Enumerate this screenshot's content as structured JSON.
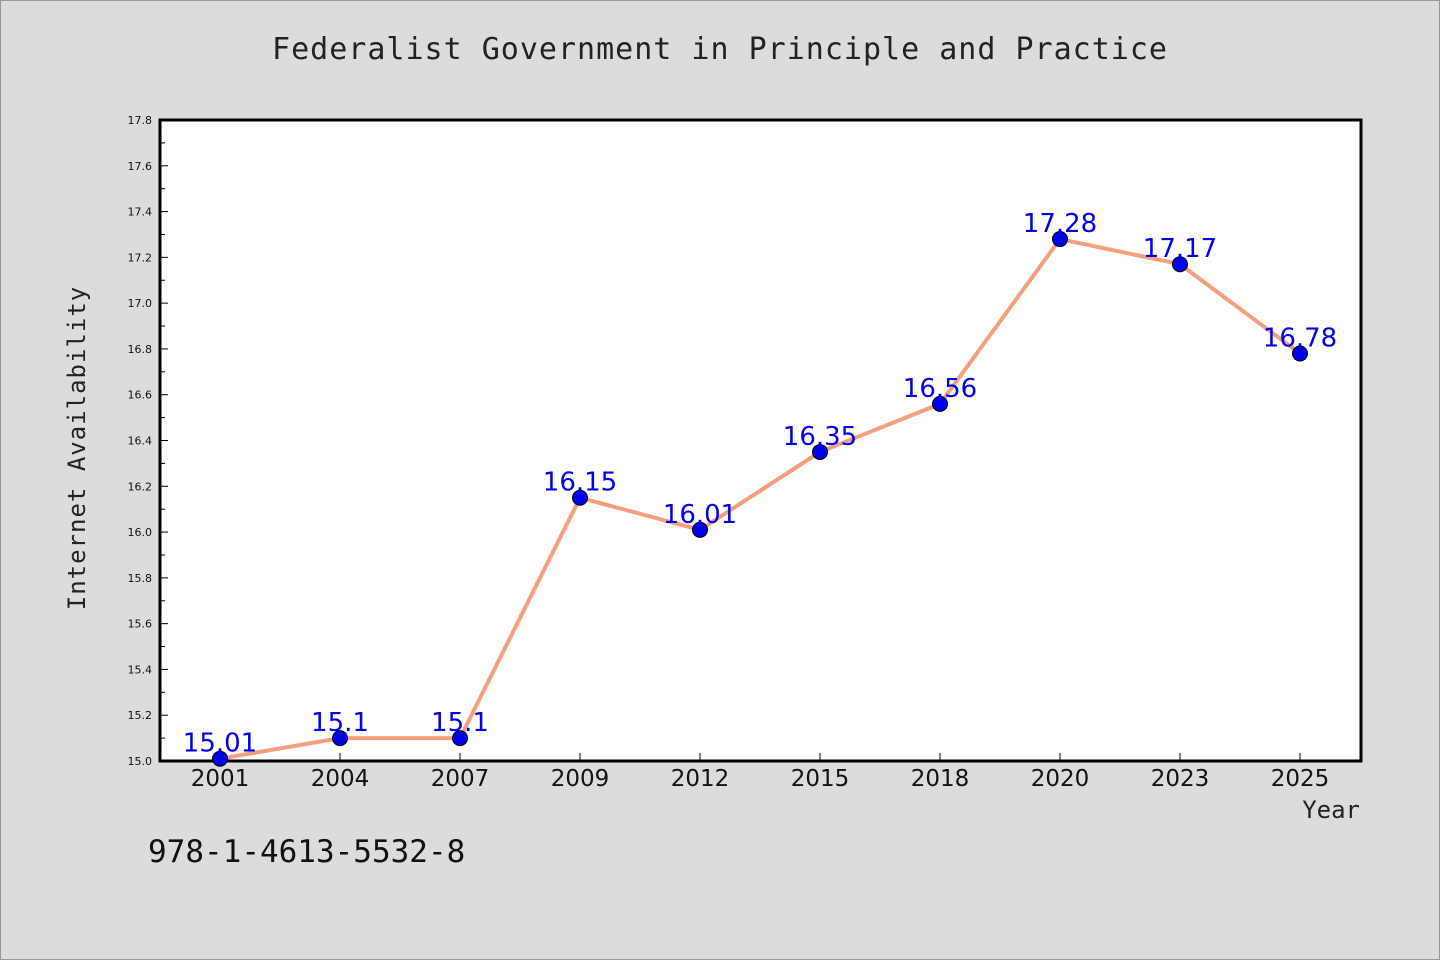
{
  "chart_data": {
    "type": "line",
    "title": "Federalist Government in Principle and Practice",
    "xlabel": "Year",
    "ylabel": "Internet Availability",
    "categories": [
      "2001",
      "2004",
      "2007",
      "2009",
      "2012",
      "2015",
      "2018",
      "2020",
      "2023",
      "2025"
    ],
    "series": [
      {
        "values": [
          15.01,
          15.1,
          15.1,
          16.15,
          16.01,
          16.35,
          16.56,
          17.28,
          17.17,
          16.78
        ],
        "data_labels": [
          "15.01",
          "15.1",
          "15.1",
          "16.15",
          "16.01",
          "16.35",
          "16.56",
          "17.28",
          "17.17",
          "16.78"
        ],
        "line_color": "#f4a07e",
        "marker_color": "#0000ee",
        "label_color": "#0000ee"
      }
    ],
    "ylim": [
      15.0,
      17.8
    ],
    "yticks": [
      "15.0",
      "15.2",
      "15.4",
      "15.6",
      "15.8",
      "16.0",
      "16.2",
      "16.4",
      "16.6",
      "16.8",
      "17.0",
      "17.2",
      "17.4",
      "17.6",
      "17.8"
    ],
    "grid": false,
    "legend": "none"
  },
  "footer": {
    "isbn": "978-1-4613-5532-8"
  },
  "colors": {
    "background": "#dcdcdc",
    "plot_background": "#ffffff",
    "axis": "#000000"
  }
}
